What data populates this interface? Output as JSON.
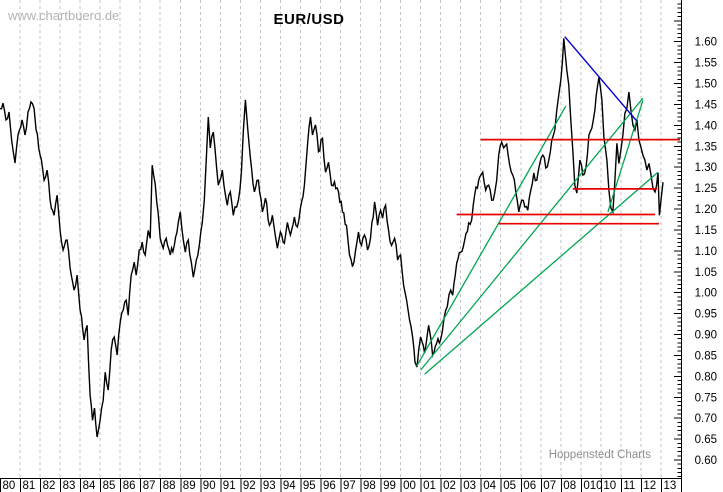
{
  "header": {
    "watermark": "www.chartbuero.de"
  },
  "footer": {
    "branding": "Hoppenstedt Charts"
  },
  "colors": {
    "price": "#000000",
    "trend_green": "#00a651",
    "level_red": "#e60000",
    "trend_blue": "#0000cc",
    "grid": "#c3c3c3",
    "axis": "#000000",
    "watermark": "#b3b3b3",
    "branding": "#8f8f8f"
  },
  "chart_data": {
    "type": "line",
    "title": "EUR/USD",
    "legend": "none",
    "grid": "vertical-dashed-yearly",
    "x_axis": {
      "unit": "year",
      "start_year": 1980,
      "labels": [
        "80",
        "81",
        "82",
        "83",
        "84",
        "85",
        "86",
        "87",
        "88",
        "89",
        "90",
        "91",
        "92",
        "93",
        "94",
        "95",
        "96",
        "97",
        "98",
        "99",
        "00",
        "01",
        "02",
        "03",
        "04",
        "05",
        "06",
        "07",
        "08",
        "010",
        "10",
        "11",
        "12",
        "13"
      ]
    },
    "y_axis": {
      "side": "right",
      "label_min": 0.6,
      "label_max": 1.6,
      "label_step": 0.05,
      "tick_minor": 0.01,
      "visible_range": [
        0.557,
        1.7
      ],
      "labels": [
        "1.60",
        "1.55",
        "1.50",
        "1.45",
        "1.40",
        "1.35",
        "1.30",
        "1.25",
        "1.20",
        "1.15",
        "1.10",
        "1.05",
        "1.00",
        "0.95",
        "0.90",
        "0.85",
        "0.80",
        "0.75",
        "0.70",
        "0.65",
        "0.60"
      ]
    },
    "series": [
      {
        "name": "EUR/USD weekly",
        "color": "#000000",
        "points": [
          [
            1980.0,
            1.44
          ],
          [
            1980.15,
            1.453
          ],
          [
            1980.3,
            1.413
          ],
          [
            1980.45,
            1.432
          ],
          [
            1980.65,
            1.341
          ],
          [
            1980.75,
            1.31
          ],
          [
            1980.9,
            1.377
          ],
          [
            1981.1,
            1.413
          ],
          [
            1981.25,
            1.377
          ],
          [
            1981.4,
            1.432
          ],
          [
            1981.55,
            1.456
          ],
          [
            1981.7,
            1.44
          ],
          [
            1981.8,
            1.389
          ],
          [
            1982.0,
            1.329
          ],
          [
            1982.2,
            1.269
          ],
          [
            1982.35,
            1.293
          ],
          [
            1982.5,
            1.221
          ],
          [
            1982.7,
            1.185
          ],
          [
            1982.85,
            1.233
          ],
          [
            1983.0,
            1.149
          ],
          [
            1983.15,
            1.102
          ],
          [
            1983.35,
            1.126
          ],
          [
            1983.5,
            1.059
          ],
          [
            1983.7,
            1.006
          ],
          [
            1983.85,
            1.042
          ],
          [
            1984.0,
            0.958
          ],
          [
            1984.2,
            0.887
          ],
          [
            1984.35,
            0.922
          ],
          [
            1984.5,
            0.755
          ],
          [
            1984.62,
            0.695
          ],
          [
            1984.72,
            0.724
          ],
          [
            1984.85,
            0.655
          ],
          [
            1985.0,
            0.695
          ],
          [
            1985.15,
            0.743
          ],
          [
            1985.25,
            0.81
          ],
          [
            1985.4,
            0.767
          ],
          [
            1985.55,
            0.863
          ],
          [
            1985.7,
            0.894
          ],
          [
            1985.85,
            0.851
          ],
          [
            1986.0,
            0.929
          ],
          [
            1986.15,
            0.958
          ],
          [
            1986.3,
            0.982
          ],
          [
            1986.4,
            0.946
          ],
          [
            1986.55,
            1.042
          ],
          [
            1986.7,
            1.073
          ],
          [
            1986.8,
            1.042
          ],
          [
            1986.95,
            1.102
          ],
          [
            1987.1,
            1.121
          ],
          [
            1987.25,
            1.09
          ],
          [
            1987.4,
            1.149
          ],
          [
            1987.5,
            1.13
          ],
          [
            1987.6,
            1.305
          ],
          [
            1987.75,
            1.26
          ],
          [
            1987.9,
            1.19
          ],
          [
            1988.0,
            1.13
          ],
          [
            1988.15,
            1.106
          ],
          [
            1988.3,
            1.13
          ],
          [
            1988.5,
            1.09
          ],
          [
            1988.7,
            1.113
          ],
          [
            1988.9,
            1.168
          ],
          [
            1989.0,
            1.193
          ],
          [
            1989.15,
            1.126
          ],
          [
            1989.25,
            1.097
          ],
          [
            1989.4,
            1.126
          ],
          [
            1989.55,
            1.073
          ],
          [
            1989.65,
            1.037
          ],
          [
            1989.8,
            1.078
          ],
          [
            1989.95,
            1.113
          ],
          [
            1990.1,
            1.168
          ],
          [
            1990.2,
            1.221
          ],
          [
            1990.3,
            1.32
          ],
          [
            1990.4,
            1.42
          ],
          [
            1990.5,
            1.346
          ],
          [
            1990.65,
            1.384
          ],
          [
            1990.9,
            1.257
          ],
          [
            1991.1,
            1.293
          ],
          [
            1991.35,
            1.209
          ],
          [
            1991.5,
            1.241
          ],
          [
            1991.65,
            1.185
          ],
          [
            1991.9,
            1.221
          ],
          [
            1992.05,
            1.288
          ],
          [
            1992.15,
            1.389
          ],
          [
            1992.25,
            1.461
          ],
          [
            1992.35,
            1.401
          ],
          [
            1992.5,
            1.322
          ],
          [
            1992.7,
            1.241
          ],
          [
            1992.9,
            1.269
          ],
          [
            1993.1,
            1.193
          ],
          [
            1993.25,
            1.226
          ],
          [
            1993.45,
            1.161
          ],
          [
            1993.6,
            1.185
          ],
          [
            1993.85,
            1.106
          ],
          [
            1994.0,
            1.145
          ],
          [
            1994.2,
            1.118
          ],
          [
            1994.35,
            1.168
          ],
          [
            1994.5,
            1.138
          ],
          [
            1994.7,
            1.181
          ],
          [
            1994.85,
            1.157
          ],
          [
            1995.0,
            1.202
          ],
          [
            1995.2,
            1.257
          ],
          [
            1995.35,
            1.353
          ],
          [
            1995.5,
            1.42
          ],
          [
            1995.6,
            1.377
          ],
          [
            1995.75,
            1.401
          ],
          [
            1995.9,
            1.337
          ],
          [
            1996.1,
            1.369
          ],
          [
            1996.25,
            1.288
          ],
          [
            1996.4,
            1.312
          ],
          [
            1996.55,
            1.257
          ],
          [
            1996.7,
            1.265
          ],
          [
            1996.9,
            1.241
          ],
          [
            1997.1,
            1.193
          ],
          [
            1997.3,
            1.161
          ],
          [
            1997.45,
            1.09
          ],
          [
            1997.6,
            1.062
          ],
          [
            1997.75,
            1.1
          ],
          [
            1997.9,
            1.145
          ],
          [
            1998.05,
            1.113
          ],
          [
            1998.2,
            1.138
          ],
          [
            1998.35,
            1.102
          ],
          [
            1998.5,
            1.13
          ],
          [
            1998.7,
            1.217
          ],
          [
            1998.85,
            1.161
          ],
          [
            1999.0,
            1.197
          ],
          [
            1999.1,
            1.178
          ],
          [
            1999.25,
            1.209
          ],
          [
            1999.4,
            1.149
          ],
          [
            1999.55,
            1.113
          ],
          [
            1999.7,
            1.13
          ],
          [
            1999.85,
            1.078
          ],
          [
            2000.0,
            1.09
          ],
          [
            2000.15,
            1.018
          ],
          [
            2000.3,
            0.982
          ],
          [
            2000.45,
            0.934
          ],
          [
            2000.6,
            0.894
          ],
          [
            2000.72,
            0.834
          ],
          [
            2000.82,
            0.822
          ],
          [
            2001.0,
            0.894
          ],
          [
            2001.2,
            0.855
          ],
          [
            2001.4,
            0.922
          ],
          [
            2001.6,
            0.85
          ],
          [
            2001.8,
            0.879
          ],
          [
            2002.0,
            0.887
          ],
          [
            2002.25,
            0.958
          ],
          [
            2002.5,
            1.006
          ],
          [
            2002.6,
            0.994
          ],
          [
            2002.8,
            1.071
          ],
          [
            2003.0,
            1.097
          ],
          [
            2003.2,
            1.126
          ],
          [
            2003.4,
            1.167
          ],
          [
            2003.55,
            1.174
          ],
          [
            2003.7,
            1.234
          ],
          [
            2003.9,
            1.269
          ],
          [
            2004.1,
            1.288
          ],
          [
            2004.25,
            1.245
          ],
          [
            2004.4,
            1.257
          ],
          [
            2004.55,
            1.221
          ],
          [
            2004.7,
            1.238
          ],
          [
            2004.8,
            1.269
          ],
          [
            2004.9,
            1.329
          ],
          [
            2005.05,
            1.36
          ],
          [
            2005.15,
            1.346
          ],
          [
            2005.3,
            1.355
          ],
          [
            2005.45,
            1.305
          ],
          [
            2005.6,
            1.281
          ],
          [
            2005.75,
            1.241
          ],
          [
            2005.9,
            1.193
          ],
          [
            2006.05,
            1.221
          ],
          [
            2006.2,
            1.205
          ],
          [
            2006.35,
            1.197
          ],
          [
            2006.5,
            1.245
          ],
          [
            2006.65,
            1.286
          ],
          [
            2006.8,
            1.269
          ],
          [
            2006.95,
            1.309
          ],
          [
            2007.1,
            1.329
          ],
          [
            2007.25,
            1.298
          ],
          [
            2007.4,
            1.317
          ],
          [
            2007.55,
            1.365
          ],
          [
            2007.7,
            1.389
          ],
          [
            2007.8,
            1.437
          ],
          [
            2007.9,
            1.473
          ],
          [
            2008.0,
            1.508
          ],
          [
            2008.15,
            1.608
          ],
          [
            2008.3,
            1.532
          ],
          [
            2008.4,
            1.496
          ],
          [
            2008.5,
            1.413
          ],
          [
            2008.6,
            1.341
          ],
          [
            2008.7,
            1.257
          ],
          [
            2008.8,
            1.238
          ],
          [
            2008.95,
            1.317
          ],
          [
            2009.1,
            1.281
          ],
          [
            2009.25,
            1.298
          ],
          [
            2009.4,
            1.377
          ],
          [
            2009.55,
            1.394
          ],
          [
            2009.7,
            1.437
          ],
          [
            2009.9,
            1.515
          ],
          [
            2010.05,
            1.461
          ],
          [
            2010.15,
            1.372
          ],
          [
            2010.3,
            1.317
          ],
          [
            2010.4,
            1.245
          ],
          [
            2010.5,
            1.202
          ],
          [
            2010.6,
            1.193
          ],
          [
            2010.7,
            1.269
          ],
          [
            2010.8,
            1.357
          ],
          [
            2010.9,
            1.309
          ],
          [
            2011.0,
            1.341
          ],
          [
            2011.1,
            1.377
          ],
          [
            2011.2,
            1.429
          ],
          [
            2011.3,
            1.441
          ],
          [
            2011.4,
            1.48
          ],
          [
            2011.5,
            1.437
          ],
          [
            2011.6,
            1.401
          ],
          [
            2011.7,
            1.389
          ],
          [
            2011.8,
            1.413
          ],
          [
            2011.9,
            1.365
          ],
          [
            2012.0,
            1.348
          ],
          [
            2012.1,
            1.329
          ],
          [
            2012.2,
            1.317
          ],
          [
            2012.3,
            1.293
          ],
          [
            2012.4,
            1.309
          ],
          [
            2012.5,
            1.281
          ],
          [
            2012.6,
            1.25
          ],
          [
            2012.7,
            1.241
          ],
          [
            2012.78,
            1.257
          ],
          [
            2012.85,
            1.287
          ],
          [
            2012.92,
            1.185
          ],
          [
            2013.0,
            1.221
          ],
          [
            2013.1,
            1.264
          ]
        ]
      }
    ],
    "overlays": {
      "green_trendlines": [
        {
          "from": [
            2000.8,
            0.824
          ],
          "to": [
            2008.25,
            1.446
          ]
        },
        {
          "from": [
            2001.0,
            0.815
          ],
          "to": [
            2012.1,
            1.465
          ]
        },
        {
          "from": [
            2001.2,
            0.805
          ],
          "to": [
            2012.85,
            1.288
          ]
        },
        {
          "from": [
            2010.35,
            1.193
          ],
          "to": [
            2012.1,
            1.46
          ]
        }
      ],
      "red_levels": [
        {
          "value": 1.366,
          "from_year": 2004.0,
          "to_year": 2013.95
        },
        {
          "value": 1.248,
          "from_year": 2008.6,
          "to_year": 2012.8
        },
        {
          "value": 1.187,
          "from_year": 2002.8,
          "to_year": 2012.7
        },
        {
          "value": 1.165,
          "from_year": 2004.9,
          "to_year": 2012.9
        }
      ],
      "blue_trendline": {
        "from": [
          2008.2,
          1.612
        ],
        "to": [
          2011.8,
          1.41
        ]
      }
    }
  }
}
